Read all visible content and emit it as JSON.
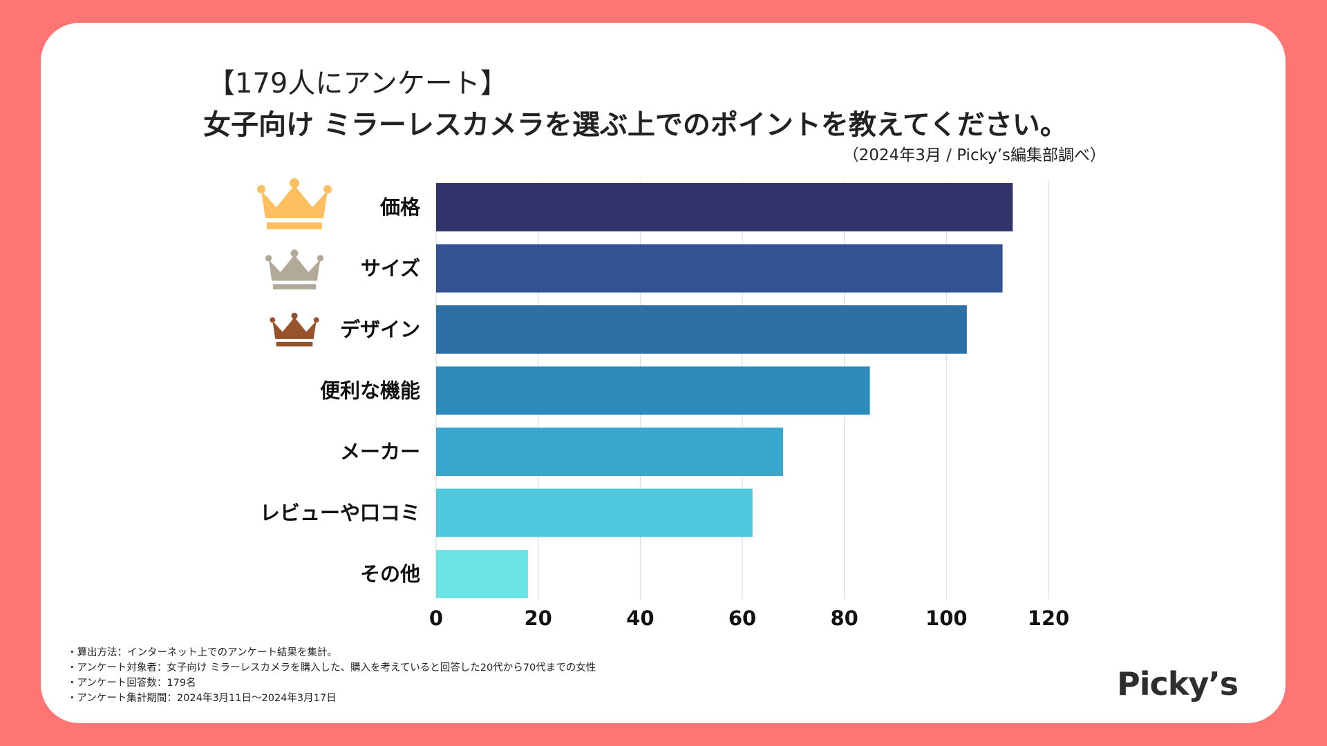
{
  "header": {
    "line1": "【179人にアンケート】",
    "line2": "女子向け ミラーレスカメラを選ぶ上でのポイントを教えてください。",
    "source": "（2024年3月 / Picky’s編集部調べ）"
  },
  "chart_data": {
    "type": "bar",
    "orientation": "horizontal",
    "title": "女子向け ミラーレスカメラを選ぶ上でのポイントを教えてください。",
    "categories": [
      "価格",
      "サイズ",
      "デザイン",
      "便利な機能",
      "メーカー",
      "レビューや口コミ",
      "その他"
    ],
    "values": [
      113,
      111,
      104,
      85,
      68,
      62,
      18
    ],
    "colors": [
      "#31346c",
      "#32538f",
      "#2e6fa6",
      "#2d8bbc",
      "#39a7cd",
      "#4ec8de",
      "#6be4e7"
    ],
    "ranks": [
      "gold",
      "silver",
      "bronze",
      "",
      "",
      "",
      ""
    ],
    "rank_colors": {
      "gold": "#fdbf5f",
      "silver": "#b3a999",
      "bronze": "#98532d"
    },
    "xlim": [
      0,
      120
    ],
    "xticks": [
      0,
      20,
      40,
      60,
      80,
      100,
      120
    ],
    "xlabel": "",
    "ylabel": "",
    "grid": true
  },
  "notes": [
    "・算出方法：インターネット上でのアンケート結果を集計。",
    "・アンケート対象者：女子向け ミラーレスカメラを購入した、購入を考えていると回答した20代から70代までの女性",
    "・アンケート回答数：179名",
    "・アンケート集計期間：2024年3月11日〜2024年3月17日"
  ],
  "logo": "Picky’s"
}
